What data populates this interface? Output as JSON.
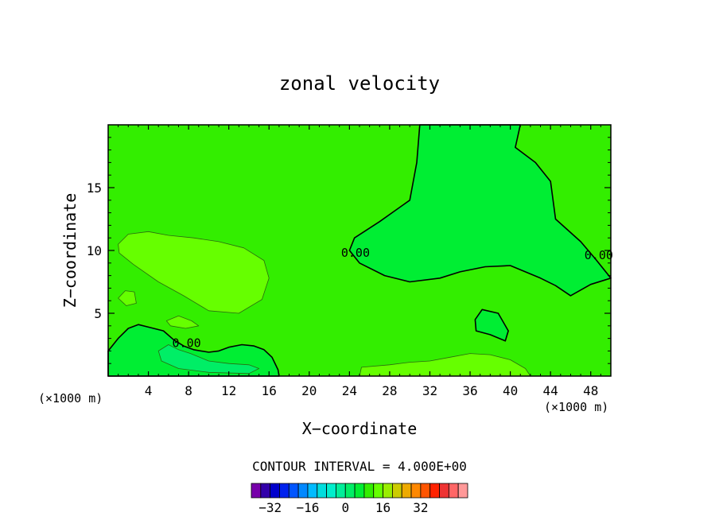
{
  "chart_data": {
    "type": "contour",
    "title": "zonal velocity",
    "xlabel": "X−coordinate",
    "ylabel": "Z−coordinate",
    "x_units": "(×1000 m)",
    "y_units": "(×1000 m)",
    "xlim": [
      0,
      50
    ],
    "ylim": [
      0,
      20
    ],
    "x_ticks": [
      4,
      8,
      12,
      16,
      20,
      24,
      28,
      32,
      36,
      40,
      44,
      48
    ],
    "y_ticks": [
      5,
      10,
      15
    ],
    "contour_interval_text": "CONTOUR INTERVAL = 4.000E+00",
    "contour_labels": [
      {
        "text": "0.00",
        "x": 24.6,
        "y": 9.5
      },
      {
        "text": "0.00",
        "x": 48.8,
        "y": 9.3
      },
      {
        "text": "0.00",
        "x": 7.8,
        "y": 2.3
      }
    ],
    "background_color": "#33ee00",
    "regions": [
      {
        "name": "negative zone upper right",
        "color": "#00ee33",
        "outlined": true,
        "points": [
          [
            31,
            20
          ],
          [
            41,
            20
          ],
          [
            40.5,
            18.2
          ],
          [
            42.5,
            17
          ],
          [
            44,
            15.5
          ],
          [
            44.5,
            12.5
          ],
          [
            47,
            10.7
          ],
          [
            48.5,
            9.3
          ],
          [
            50,
            7.8
          ],
          [
            50,
            7.8
          ],
          [
            48,
            7.3
          ],
          [
            46,
            6.4
          ],
          [
            44.5,
            7.2
          ],
          [
            43,
            7.8
          ],
          [
            40,
            8.8
          ],
          [
            37.5,
            8.7
          ],
          [
            35,
            8.3
          ],
          [
            33,
            7.8
          ],
          [
            30,
            7.5
          ],
          [
            27.5,
            8
          ],
          [
            25,
            9
          ],
          [
            24,
            10
          ],
          [
            24.5,
            11
          ],
          [
            27,
            12.3
          ],
          [
            30,
            14
          ],
          [
            30.7,
            17
          ]
        ]
      },
      {
        "name": "negative blob right",
        "color": "#00ee33",
        "outlined": true,
        "points": [
          [
            36.5,
            4.5
          ],
          [
            37.2,
            5.3
          ],
          [
            38.8,
            5.0
          ],
          [
            39.8,
            3.6
          ],
          [
            39.5,
            2.8
          ],
          [
            38,
            3.3
          ],
          [
            36.6,
            3.6
          ]
        ]
      },
      {
        "name": "negative zone lower left",
        "color": "#00ee33",
        "outlined": true,
        "points": [
          [
            0,
            2
          ],
          [
            1,
            3
          ],
          [
            2,
            3.8
          ],
          [
            3,
            4.1
          ],
          [
            4,
            3.9
          ],
          [
            5.5,
            3.6
          ],
          [
            6.5,
            2.9
          ],
          [
            7.5,
            2.4
          ],
          [
            8.5,
            2.1
          ],
          [
            10,
            1.9
          ],
          [
            11,
            2.0
          ],
          [
            12,
            2.3
          ],
          [
            13.3,
            2.5
          ],
          [
            14.5,
            2.4
          ],
          [
            15.5,
            2.1
          ],
          [
            16.3,
            1.5
          ],
          [
            16.9,
            0.5
          ],
          [
            17,
            0
          ],
          [
            0,
            0
          ]
        ]
      },
      {
        "name": "more negative zone",
        "color": "#00ee66",
        "outlined": false,
        "points": [
          [
            5,
            2.0
          ],
          [
            6,
            2.5
          ],
          [
            7,
            2.1
          ],
          [
            8.2,
            1.8
          ],
          [
            10,
            1.2
          ],
          [
            12,
            1.0
          ],
          [
            14,
            0.9
          ],
          [
            15,
            0.6
          ],
          [
            14,
            0.2
          ],
          [
            10,
            0.3
          ],
          [
            7,
            0.6
          ],
          [
            5.3,
            1.2
          ]
        ]
      },
      {
        "name": "positive blob upper left",
        "color": "#66ff00",
        "outlined": false,
        "points": [
          [
            1,
            10.5
          ],
          [
            2,
            11.3
          ],
          [
            4,
            11.5
          ],
          [
            6,
            11.2
          ],
          [
            8.5,
            11.0
          ],
          [
            11,
            10.7
          ],
          [
            13.5,
            10.2
          ],
          [
            15.5,
            9.2
          ],
          [
            16,
            7.8
          ],
          [
            15.3,
            6.1
          ],
          [
            13,
            5.0
          ],
          [
            10,
            5.2
          ],
          [
            7.5,
            6.4
          ],
          [
            5,
            7.5
          ],
          [
            2.5,
            8.9
          ],
          [
            1.1,
            9.8
          ]
        ]
      },
      {
        "name": "positive blob small left",
        "color": "#66ff00",
        "outlined": false,
        "points": [
          [
            1,
            6.2
          ],
          [
            1.7,
            6.8
          ],
          [
            2.6,
            6.7
          ],
          [
            2.8,
            5.8
          ],
          [
            1.8,
            5.6
          ]
        ]
      },
      {
        "name": "positive blob mid",
        "color": "#66ff00",
        "outlined": false,
        "points": [
          [
            5.8,
            4.4
          ],
          [
            7,
            4.8
          ],
          [
            8.3,
            4.4
          ],
          [
            9,
            4.0
          ],
          [
            7.7,
            3.8
          ],
          [
            6.2,
            4.0
          ]
        ]
      },
      {
        "name": "positive strip bottom",
        "color": "#66ff00",
        "outlined": false,
        "points": [
          [
            25,
            0
          ],
          [
            25.2,
            0.7
          ],
          [
            28,
            0.9
          ],
          [
            30,
            1.1
          ],
          [
            32,
            1.2
          ],
          [
            34,
            1.5
          ],
          [
            36,
            1.8
          ],
          [
            38,
            1.7
          ],
          [
            40,
            1.3
          ],
          [
            41.5,
            0.6
          ],
          [
            42,
            0
          ]
        ]
      }
    ],
    "colorbar": {
      "tick_labels": [
        "−32",
        "−16",
        "0",
        "16",
        "32"
      ],
      "colors": [
        "#7700aa",
        "#3300aa",
        "#0000cc",
        "#0022ee",
        "#0055ff",
        "#0088ff",
        "#00bbff",
        "#00dddd",
        "#00eecc",
        "#00ee99",
        "#00ee66",
        "#00ee33",
        "#33ee00",
        "#66ff00",
        "#99ee00",
        "#cccc00",
        "#eeaa00",
        "#ff8800",
        "#ff5500",
        "#ff2200",
        "#ee3333",
        "#ff6666",
        "#ff9999"
      ]
    }
  }
}
